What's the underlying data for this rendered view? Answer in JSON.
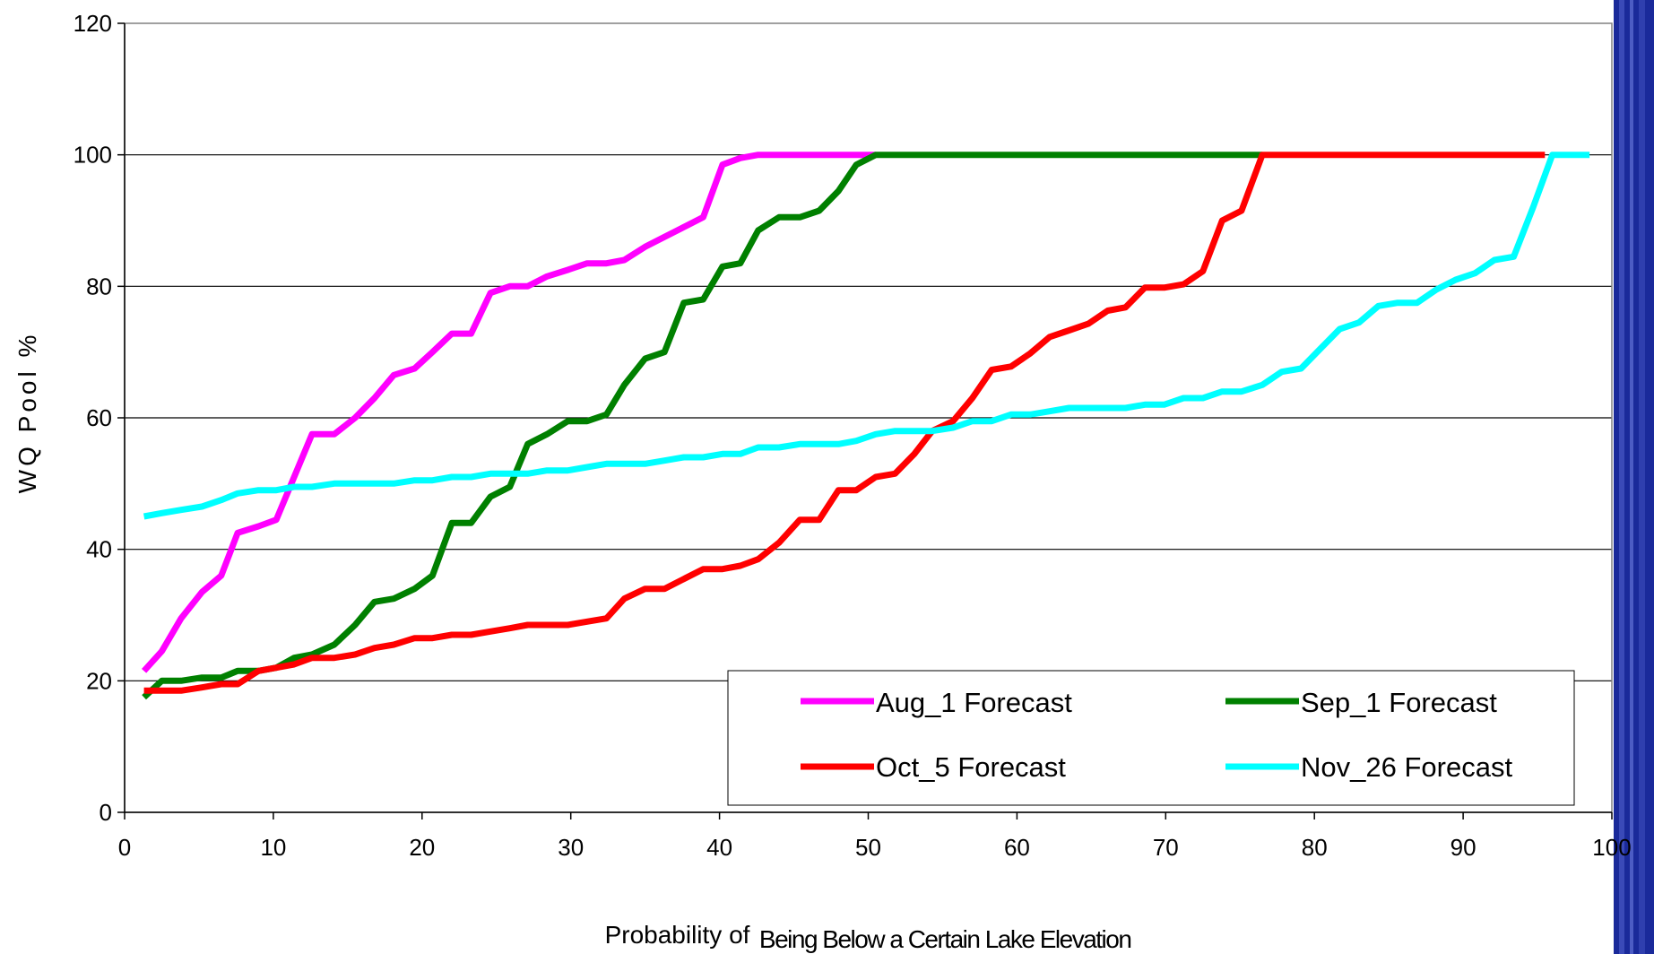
{
  "chart_data": {
    "type": "line",
    "title": "",
    "ylabel": "WQ Pool %",
    "xlabel": "Probability of",
    "xlabel_small": "Being Below a Certain Lake Elevation",
    "xlim": [
      0,
      100
    ],
    "ylim": [
      0,
      120
    ],
    "x_ticks": [
      0,
      10,
      20,
      30,
      40,
      50,
      60,
      70,
      80,
      90,
      100
    ],
    "y_ticks": [
      0,
      20,
      40,
      60,
      80,
      100,
      120
    ],
    "grid": "horizontal",
    "legend_position": "bottom-right",
    "series": [
      {
        "name": "Aug_1 Forecast",
        "color": "#ff00ff",
        "points": [
          [
            1.3,
            21.5
          ],
          [
            2.5,
            24.5
          ],
          [
            3.8,
            29.5
          ],
          [
            5.2,
            33.5
          ],
          [
            6.5,
            36
          ],
          [
            7.6,
            42.5
          ],
          [
            9,
            43.5
          ],
          [
            10.2,
            44.5
          ],
          [
            11.4,
            51
          ],
          [
            12.6,
            57.5
          ],
          [
            14.1,
            57.5
          ],
          [
            15.5,
            60
          ],
          [
            16.8,
            63
          ],
          [
            18.1,
            66.5
          ],
          [
            19.5,
            67.5
          ],
          [
            20.7,
            70
          ],
          [
            22,
            72.8
          ],
          [
            23.3,
            72.8
          ],
          [
            24.6,
            79
          ],
          [
            25.9,
            80
          ],
          [
            27.1,
            80
          ],
          [
            28.4,
            81.5
          ],
          [
            29.8,
            82.5
          ],
          [
            31.1,
            83.5
          ],
          [
            32.4,
            83.5
          ],
          [
            33.6,
            84
          ],
          [
            35,
            86
          ],
          [
            36.3,
            87.5
          ],
          [
            37.6,
            89
          ],
          [
            38.9,
            90.5
          ],
          [
            40.2,
            98.5
          ],
          [
            41.4,
            99.5
          ],
          [
            42.6,
            100
          ],
          [
            44,
            100
          ],
          [
            50.5,
            100
          ]
        ]
      },
      {
        "name": "Sep_1 Forecast",
        "color": "#008000",
        "points": [
          [
            1.3,
            17.5
          ],
          [
            2.5,
            20
          ],
          [
            3.8,
            20
          ],
          [
            5.2,
            20.5
          ],
          [
            6.5,
            20.5
          ],
          [
            7.6,
            21.5
          ],
          [
            9,
            21.5
          ],
          [
            10.2,
            22
          ],
          [
            11.4,
            23.5
          ],
          [
            12.6,
            24
          ],
          [
            14.1,
            25.5
          ],
          [
            15.5,
            28.5
          ],
          [
            16.8,
            32
          ],
          [
            18.1,
            32.5
          ],
          [
            19.5,
            34
          ],
          [
            20.7,
            36
          ],
          [
            22,
            44
          ],
          [
            23.3,
            44
          ],
          [
            24.6,
            48
          ],
          [
            25.9,
            49.5
          ],
          [
            27.1,
            56
          ],
          [
            28.4,
            57.5
          ],
          [
            29.8,
            59.5
          ],
          [
            31.1,
            59.5
          ],
          [
            32.4,
            60.5
          ],
          [
            33.6,
            65
          ],
          [
            35,
            69
          ],
          [
            36.3,
            70
          ],
          [
            37.6,
            77.5
          ],
          [
            38.9,
            78
          ],
          [
            40.2,
            83
          ],
          [
            41.4,
            83.5
          ],
          [
            42.6,
            88.5
          ],
          [
            44,
            90.5
          ],
          [
            45.4,
            90.5
          ],
          [
            46.7,
            91.5
          ],
          [
            48,
            94.5
          ],
          [
            49.2,
            98.5
          ],
          [
            50.5,
            100
          ],
          [
            76.5,
            100
          ]
        ]
      },
      {
        "name": "Oct_5 Forecast",
        "color": "#ff0000",
        "points": [
          [
            1.3,
            18.5
          ],
          [
            3.8,
            18.5
          ],
          [
            5.2,
            19
          ],
          [
            6.5,
            19.5
          ],
          [
            7.6,
            19.5
          ],
          [
            9,
            21.5
          ],
          [
            10.2,
            22
          ],
          [
            11.4,
            22.5
          ],
          [
            12.6,
            23.5
          ],
          [
            14.1,
            23.5
          ],
          [
            15.5,
            24
          ],
          [
            16.8,
            25
          ],
          [
            18.1,
            25.5
          ],
          [
            19.5,
            26.5
          ],
          [
            20.7,
            26.5
          ],
          [
            22,
            27
          ],
          [
            23.3,
            27
          ],
          [
            24.6,
            27.5
          ],
          [
            25.9,
            28
          ],
          [
            27.1,
            28.5
          ],
          [
            29.8,
            28.5
          ],
          [
            31.1,
            29
          ],
          [
            32.4,
            29.5
          ],
          [
            33.6,
            32.5
          ],
          [
            35,
            34
          ],
          [
            36.3,
            34
          ],
          [
            37.6,
            35.5
          ],
          [
            38.9,
            37
          ],
          [
            40.2,
            37
          ],
          [
            41.4,
            37.5
          ],
          [
            42.6,
            38.5
          ],
          [
            44,
            41
          ],
          [
            45.4,
            44.5
          ],
          [
            46.7,
            44.5
          ],
          [
            48,
            49
          ],
          [
            49.2,
            49
          ],
          [
            50.5,
            51
          ],
          [
            51.8,
            51.5
          ],
          [
            53.1,
            54.5
          ],
          [
            54.3,
            58
          ],
          [
            55.7,
            59.5
          ],
          [
            57,
            63
          ],
          [
            58.3,
            67.3
          ],
          [
            59.6,
            67.8
          ],
          [
            60.9,
            69.8
          ],
          [
            62.2,
            72.3
          ],
          [
            63.5,
            73.3
          ],
          [
            64.8,
            74.3
          ],
          [
            66.1,
            76.3
          ],
          [
            67.3,
            76.8
          ],
          [
            68.6,
            79.8
          ],
          [
            69.9,
            79.8
          ],
          [
            71.2,
            80.3
          ],
          [
            72.5,
            82.3
          ],
          [
            73.8,
            90
          ],
          [
            75.1,
            91.5
          ],
          [
            76.5,
            100
          ],
          [
            95.5,
            100
          ]
        ]
      },
      {
        "name": "Nov_26 Forecast",
        "color": "#00ffff",
        "points": [
          [
            1.3,
            45
          ],
          [
            2.5,
            45.5
          ],
          [
            3.8,
            46
          ],
          [
            5.2,
            46.5
          ],
          [
            6.5,
            47.5
          ],
          [
            7.6,
            48.5
          ],
          [
            9,
            49
          ],
          [
            10.2,
            49
          ],
          [
            11.4,
            49.5
          ],
          [
            12.6,
            49.5
          ],
          [
            14.1,
            50
          ],
          [
            15.5,
            50
          ],
          [
            16.8,
            50
          ],
          [
            18.1,
            50
          ],
          [
            19.5,
            50.5
          ],
          [
            20.7,
            50.5
          ],
          [
            22,
            51
          ],
          [
            23.3,
            51
          ],
          [
            24.6,
            51.5
          ],
          [
            25.9,
            51.5
          ],
          [
            27.1,
            51.5
          ],
          [
            28.4,
            52
          ],
          [
            29.8,
            52
          ],
          [
            31.1,
            52.5
          ],
          [
            32.4,
            53
          ],
          [
            33.6,
            53
          ],
          [
            35,
            53
          ],
          [
            36.3,
            53.5
          ],
          [
            37.6,
            54
          ],
          [
            38.9,
            54
          ],
          [
            40.2,
            54.5
          ],
          [
            41.4,
            54.5
          ],
          [
            42.6,
            55.5
          ],
          [
            44,
            55.5
          ],
          [
            45.4,
            56
          ],
          [
            46.7,
            56
          ],
          [
            48,
            56
          ],
          [
            49.2,
            56.5
          ],
          [
            50.5,
            57.5
          ],
          [
            51.8,
            58
          ],
          [
            53.1,
            58
          ],
          [
            54.3,
            58
          ],
          [
            55.7,
            58.5
          ],
          [
            57,
            59.5
          ],
          [
            58.3,
            59.5
          ],
          [
            59.6,
            60.5
          ],
          [
            60.9,
            60.5
          ],
          [
            62.2,
            61
          ],
          [
            63.5,
            61.5
          ],
          [
            64.8,
            61.5
          ],
          [
            66.1,
            61.5
          ],
          [
            67.3,
            61.5
          ],
          [
            68.6,
            62
          ],
          [
            69.9,
            62
          ],
          [
            71.2,
            63
          ],
          [
            72.5,
            63
          ],
          [
            73.8,
            64
          ],
          [
            75.1,
            64
          ],
          [
            76.5,
            65
          ],
          [
            77.8,
            67
          ],
          [
            79.1,
            67.5
          ],
          [
            80.4,
            70.5
          ],
          [
            81.7,
            73.5
          ],
          [
            83,
            74.5
          ],
          [
            84.3,
            77
          ],
          [
            85.6,
            77.5
          ],
          [
            86.9,
            77.5
          ],
          [
            88.2,
            79.5
          ],
          [
            89.5,
            81
          ],
          [
            90.8,
            82
          ],
          [
            92.1,
            84
          ],
          [
            93.4,
            84.5
          ],
          [
            94.7,
            92
          ],
          [
            96,
            100
          ],
          [
            98.5,
            100
          ]
        ]
      }
    ]
  }
}
